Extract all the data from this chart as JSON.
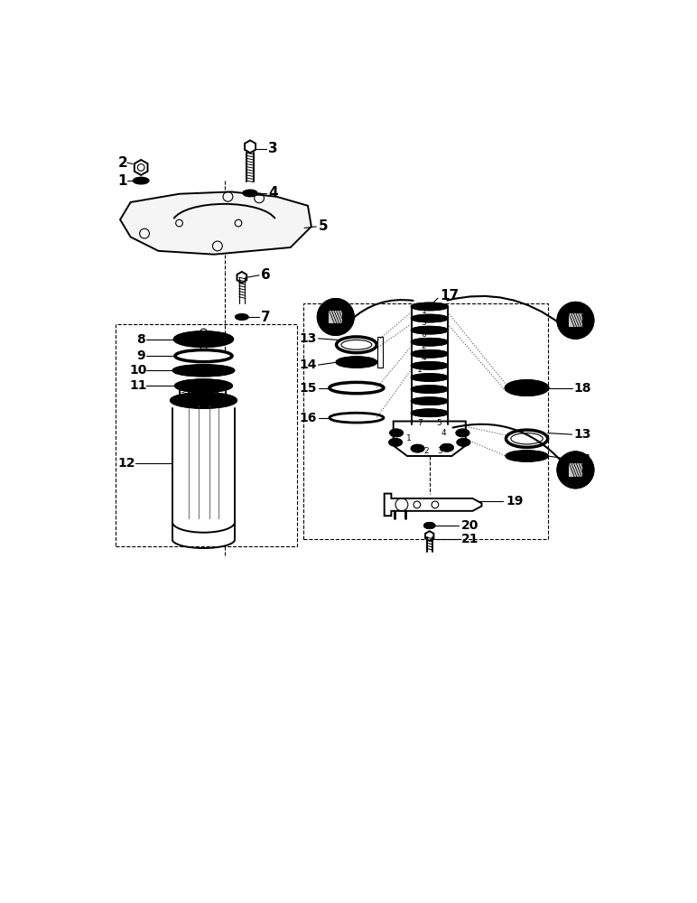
{
  "bg_color": "#ffffff",
  "line_color": "#000000",
  "figsize": [
    7.72,
    10.0
  ],
  "dpi": 100
}
